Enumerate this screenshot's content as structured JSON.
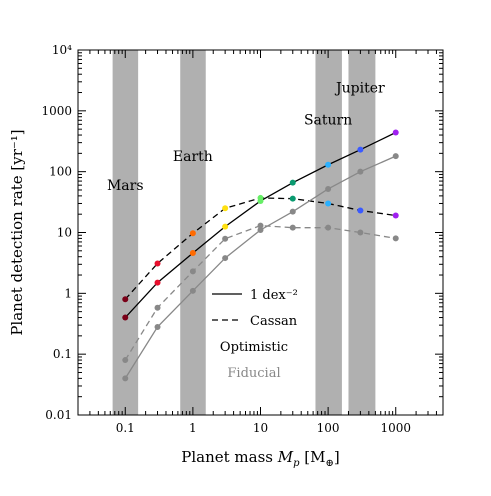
{
  "chart_data": {
    "type": "line",
    "xlabel": "Planet mass M_p [M_⊕]",
    "xlabel_parts": {
      "main": "Planet mass ",
      "sym": "M",
      "sub": "p",
      "unit_open": " [M",
      "unit_sub": "⊕",
      "unit_close": "]"
    },
    "ylabel": "Planet detection rate [yr⁻¹]",
    "xscale": "log",
    "yscale": "log",
    "xlim": [
      0.02,
      5000
    ],
    "ylim": [
      0.01,
      10000
    ],
    "x_ticks": [
      {
        "value": 0.1,
        "label": "0.1"
      },
      {
        "value": 1,
        "label": "1"
      },
      {
        "value": 10,
        "label": "10"
      },
      {
        "value": 100,
        "label": "100"
      },
      {
        "value": 1000,
        "label": "1000"
      }
    ],
    "y_ticks": [
      {
        "value": 0.01,
        "label": "0.01"
      },
      {
        "value": 0.1,
        "label": "0.1"
      },
      {
        "value": 1,
        "label": "1"
      },
      {
        "value": 10,
        "label": "10"
      },
      {
        "value": 100,
        "label": "100"
      },
      {
        "value": 1000,
        "label": "1000"
      },
      {
        "value": 10000,
        "label": "10⁴"
      }
    ],
    "shaded_bands": [
      {
        "name": "Mars",
        "xmin": 0.065,
        "xmax": 0.155
      },
      {
        "name": "Earth",
        "xmin": 0.65,
        "xmax": 1.55
      },
      {
        "name": "Saturn",
        "xmin": 65,
        "xmax": 160
      },
      {
        "name": "Jupiter",
        "xmin": 200,
        "xmax": 500
      }
    ],
    "band_labels": [
      {
        "text": "Mars",
        "x": 0.1,
        "y": 50
      },
      {
        "text": "Earth",
        "x": 1,
        "y": 150
      },
      {
        "text": "Saturn",
        "x": 100,
        "y": 600
      },
      {
        "text": "Jupiter",
        "x": 300,
        "y": 2000
      }
    ],
    "x": [
      0.1,
      0.3,
      1,
      3,
      10,
      30,
      100,
      300,
      1000
    ],
    "point_colors": [
      "#7a0018",
      "#e8102e",
      "#ff6a00",
      "#ffe010",
      "#66ee66",
      "#0a9a70",
      "#2ab0ff",
      "#3a5aff",
      "#a020f0"
    ],
    "series": [
      {
        "name": "1 dex⁻²",
        "style": "solid",
        "color": "#000000",
        "colored_markers": true,
        "values": [
          0.4,
          1.5,
          4.6,
          12.5,
          33,
          66,
          130,
          230,
          440
        ]
      },
      {
        "name": "Cassan",
        "style": "dashed",
        "color": "#000000",
        "colored_markers": true,
        "values": [
          0.8,
          3.1,
          9.7,
          25,
          37,
          36,
          30,
          23,
          19
        ]
      },
      {
        "name": "",
        "style": "solid",
        "color": "#888888",
        "colored_markers": false,
        "values": [
          0.04,
          0.28,
          1.1,
          3.8,
          11,
          22,
          52,
          100,
          180
        ]
      },
      {
        "name": "",
        "style": "dashed",
        "color": "#888888",
        "colored_markers": false,
        "values": [
          0.08,
          0.58,
          2.3,
          7.9,
          13,
          12,
          12,
          10,
          8
        ]
      }
    ],
    "legend": {
      "placement": "lower-center",
      "entries": [
        {
          "label": "1 dex⁻²",
          "style": "solid"
        },
        {
          "label": "Cassan",
          "style": "dashed"
        },
        {
          "label": "Optimistic",
          "style": "none",
          "color": "#000000"
        },
        {
          "label": "Fiducial",
          "style": "none",
          "color": "#888888"
        }
      ]
    },
    "band_color": "#b0b0b0",
    "grid": false
  }
}
